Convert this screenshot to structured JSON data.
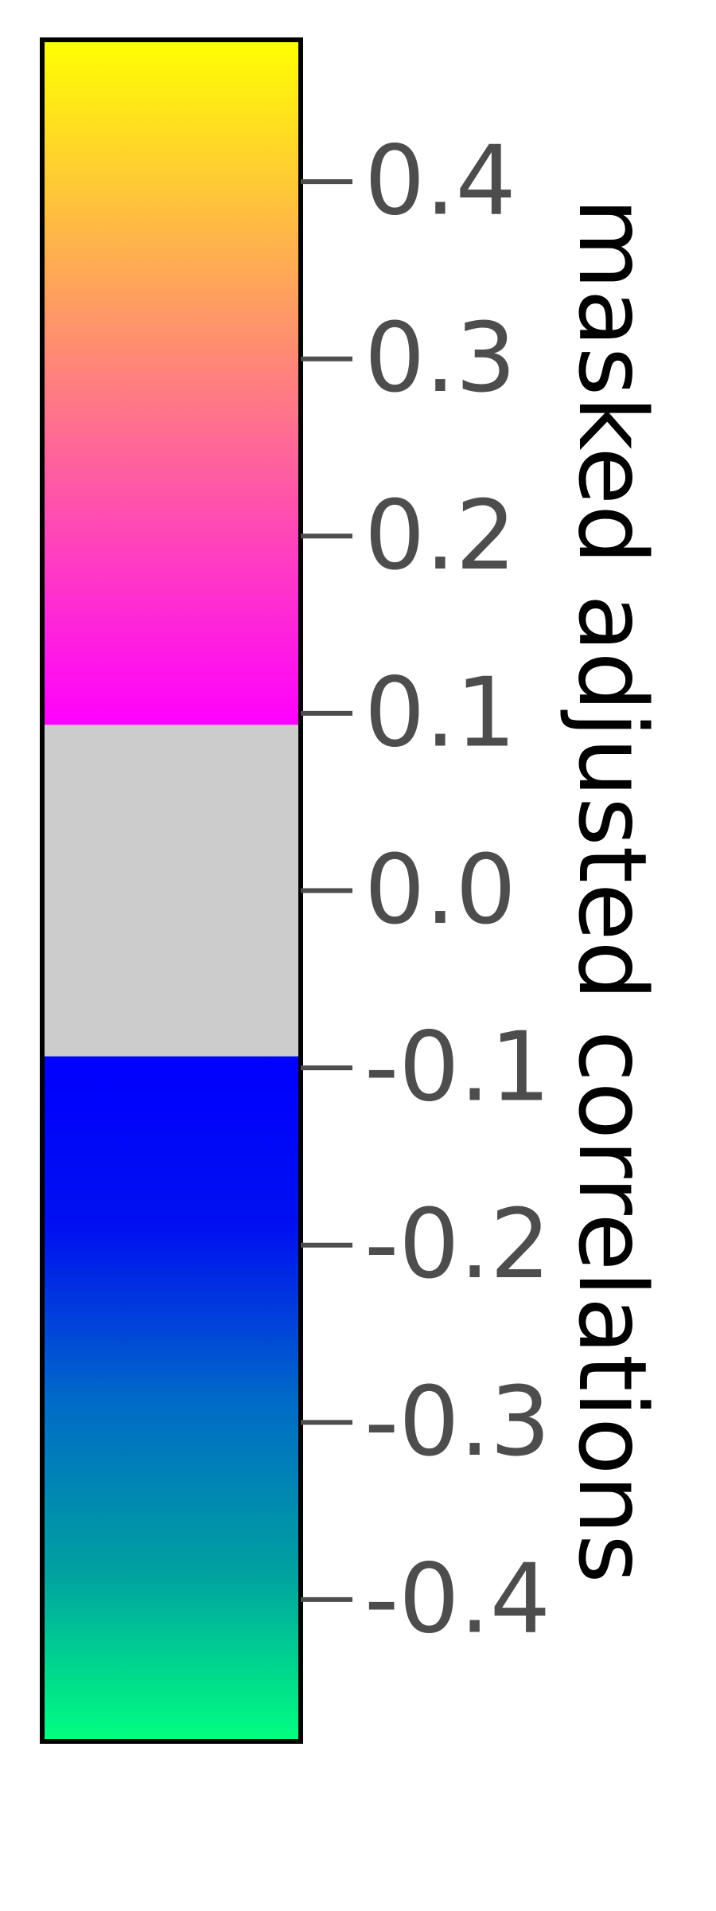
{
  "chart_data": {
    "type": "heatmap",
    "subtype": "colorbar",
    "orientation": "vertical",
    "title": "masked adjusted correlations",
    "title_position": "right",
    "title_rotation_degrees": 90,
    "ylim": [
      -0.48,
      0.48
    ],
    "ticks": [
      0.4,
      0.3,
      0.2,
      0.1,
      0.0,
      -0.1,
      -0.2,
      -0.3,
      -0.4
    ],
    "tick_labels": [
      "0.4",
      "0.3",
      "0.2",
      "0.1",
      "0.0",
      "-0.1",
      "-0.2",
      "-0.3",
      "-0.4"
    ],
    "mask_range": [
      -0.0935,
      0.0935
    ],
    "segments": [
      {
        "name": "positive",
        "from": 0.0935,
        "to": 0.48,
        "colors": [
          "#ff00ff",
          "#ff3fbf",
          "#ff7f7f",
          "#ffbf3f",
          "#ffff00"
        ]
      },
      {
        "name": "masked",
        "from": -0.0935,
        "to": 0.0935,
        "colors": [
          "#cccccc",
          "#cccccc"
        ]
      },
      {
        "name": "negative",
        "from": -0.48,
        "to": -0.0935,
        "colors": [
          "#00ff80",
          "#00a0a0",
          "#006ac8",
          "#0010f0",
          "#0000ff"
        ]
      }
    ],
    "colors": {
      "frame": "#000000",
      "tick_mark": "#4d4d4d",
      "tick_label": "#4d4d4d",
      "title": "#000000"
    }
  }
}
